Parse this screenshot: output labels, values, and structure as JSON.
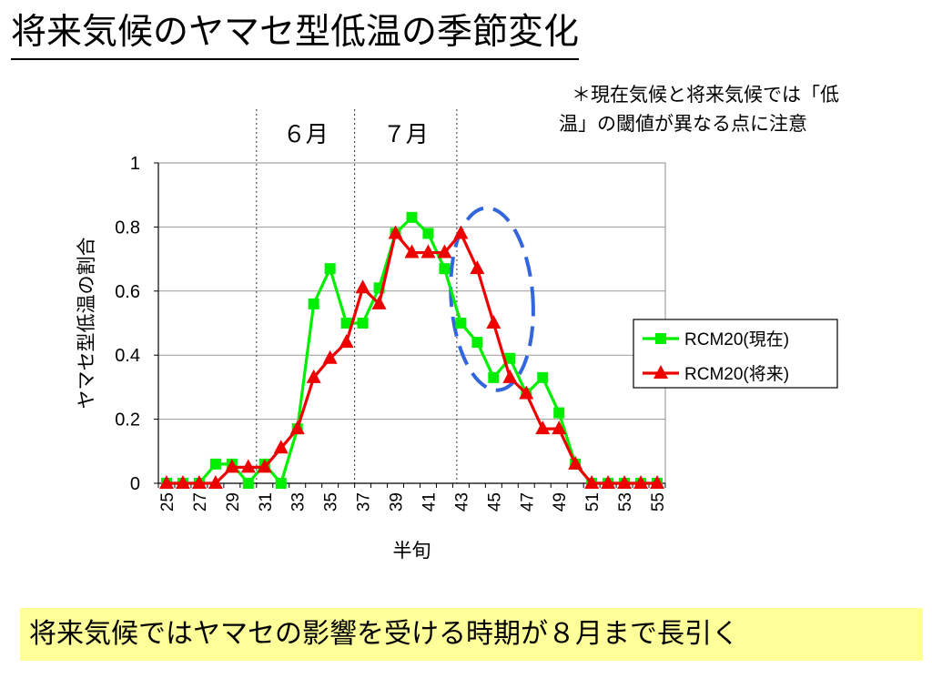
{
  "page": {
    "title": "将来気候のヤマセ型低温の季節変化",
    "note_line1": "＊現在気候と将来気候では「低",
    "note_line2": "温」の閾値が異なる点に注意",
    "conclusion": "将来気候ではヤマセの影響を受ける時期が８月まで長引く"
  },
  "chart_data": {
    "type": "line",
    "title": "",
    "xlabel": "半旬",
    "ylabel": "ヤマセ型低温の割合",
    "x": [
      25,
      26,
      27,
      28,
      29,
      30,
      31,
      32,
      33,
      34,
      35,
      36,
      37,
      38,
      39,
      40,
      41,
      42,
      43,
      44,
      45,
      46,
      47,
      48,
      49,
      50,
      51,
      52,
      53,
      54,
      55
    ],
    "x_tick_labels": [
      "25",
      "27",
      "29",
      "31",
      "33",
      "35",
      "37",
      "39",
      "41",
      "43",
      "45",
      "47",
      "49",
      "51",
      "53",
      "55"
    ],
    "ylim": [
      0,
      1
    ],
    "y_ticks": [
      "0",
      "0.2",
      "0.4",
      "0.6",
      "0.8",
      "1"
    ],
    "grid": "horizontal",
    "legend_position": "right",
    "month_labels": [
      {
        "label": "６月",
        "from": 30.5,
        "to": 36.5
      },
      {
        "label": "７月",
        "from": 36.5,
        "to": 42.75
      }
    ],
    "month_dividers": [
      30.5,
      36.5,
      42.75
    ],
    "series": [
      {
        "name": "RCM20(現在)",
        "color": "#00ee00",
        "marker": "square",
        "values": [
          0,
          0,
          0,
          0.06,
          0.06,
          0,
          0.06,
          0,
          0.17,
          0.56,
          0.67,
          0.5,
          0.5,
          0.61,
          0.78,
          0.83,
          0.78,
          0.67,
          0.5,
          0.44,
          0.33,
          0.39,
          0.28,
          0.33,
          0.22,
          0.06,
          0,
          0,
          0,
          0,
          0
        ]
      },
      {
        "name": "RCM20(将来)",
        "color": "#ee0000",
        "marker": "triangle",
        "values": [
          0,
          0,
          0,
          0,
          0.05,
          0.05,
          0.05,
          0.11,
          0.17,
          0.33,
          0.39,
          0.44,
          0.61,
          0.56,
          0.78,
          0.72,
          0.72,
          0.72,
          0.78,
          0.67,
          0.5,
          0.33,
          0.28,
          0.17,
          0.17,
          0.06,
          0,
          0,
          0,
          0,
          0
        ]
      }
    ],
    "annotation": {
      "shape": "dashed-ellipse",
      "color": "#3366dd",
      "x_range": [
        42.4,
        47.4
      ],
      "y_range": [
        0.29,
        0.86
      ]
    }
  }
}
